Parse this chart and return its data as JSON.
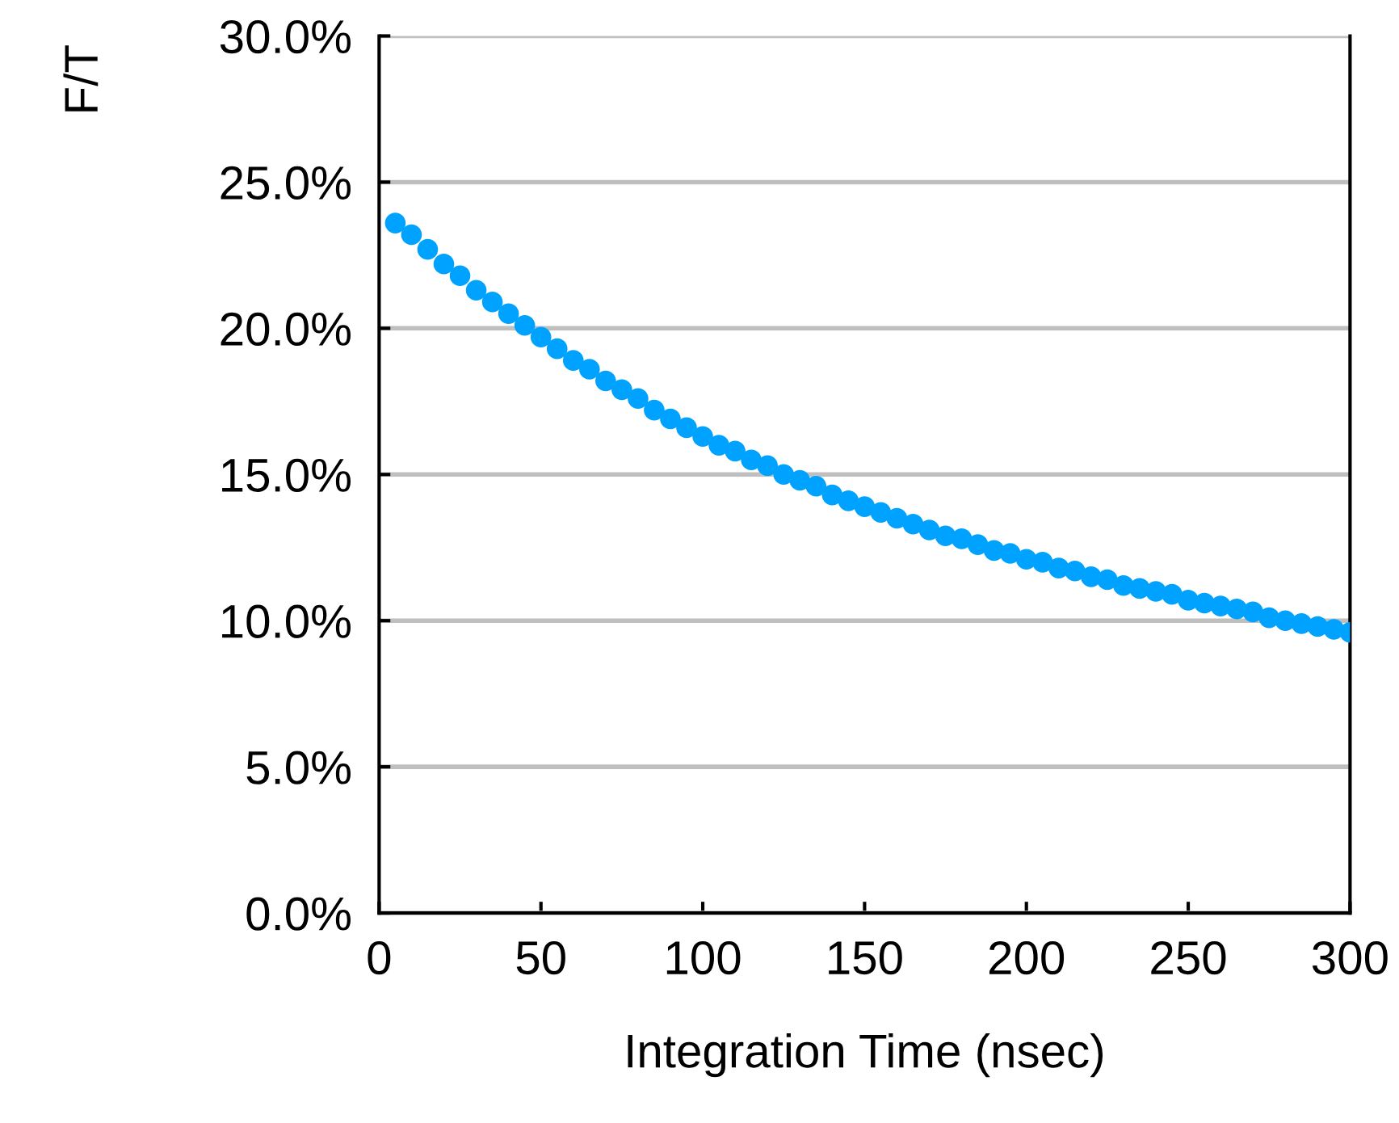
{
  "chart_data": {
    "type": "scatter",
    "xlabel": "Integration Time (nsec)",
    "ylabel": "F/T",
    "xlim": [
      0,
      300
    ],
    "xticks": [
      0,
      50,
      100,
      150,
      200,
      250,
      300
    ],
    "ylim": [
      0,
      30
    ],
    "yticks": [
      {
        "value": 0,
        "label": "0.0%"
      },
      {
        "value": 5,
        "label": "5.0%"
      },
      {
        "value": 10,
        "label": "10.0%"
      },
      {
        "value": 15,
        "label": "15.0%"
      },
      {
        "value": 20,
        "label": "20.0%"
      },
      {
        "value": 25,
        "label": "25.0%"
      },
      {
        "value": 30,
        "label": "30.0%"
      }
    ],
    "grid": "y",
    "marker": "circle",
    "series": [
      {
        "color": "#00a2ff",
        "x": [
          5,
          10,
          15,
          20,
          25,
          30,
          35,
          40,
          45,
          50,
          55,
          60,
          65,
          70,
          75,
          80,
          85,
          90,
          95,
          100,
          105,
          110,
          115,
          120,
          125,
          130,
          135,
          140,
          145,
          150,
          155,
          160,
          165,
          170,
          175,
          180,
          185,
          190,
          195,
          200,
          205,
          210,
          215,
          220,
          225,
          230,
          235,
          240,
          245,
          250,
          255,
          260,
          265,
          270,
          275,
          280,
          285,
          290,
          295,
          300
        ],
        "values": [
          23.6,
          23.2,
          22.7,
          22.2,
          21.8,
          21.3,
          20.9,
          20.5,
          20.1,
          19.7,
          19.3,
          18.9,
          18.6,
          18.2,
          17.9,
          17.6,
          17.2,
          16.9,
          16.6,
          16.3,
          16.0,
          15.8,
          15.5,
          15.3,
          15.0,
          14.8,
          14.6,
          14.3,
          14.1,
          13.9,
          13.7,
          13.5,
          13.3,
          13.1,
          12.9,
          12.8,
          12.6,
          12.4,
          12.3,
          12.1,
          12.0,
          11.8,
          11.7,
          11.5,
          11.4,
          11.2,
          11.1,
          11.0,
          10.9,
          10.7,
          10.6,
          10.5,
          10.4,
          10.3,
          10.1,
          10.0,
          9.9,
          9.8,
          9.7,
          9.6
        ]
      }
    ]
  }
}
